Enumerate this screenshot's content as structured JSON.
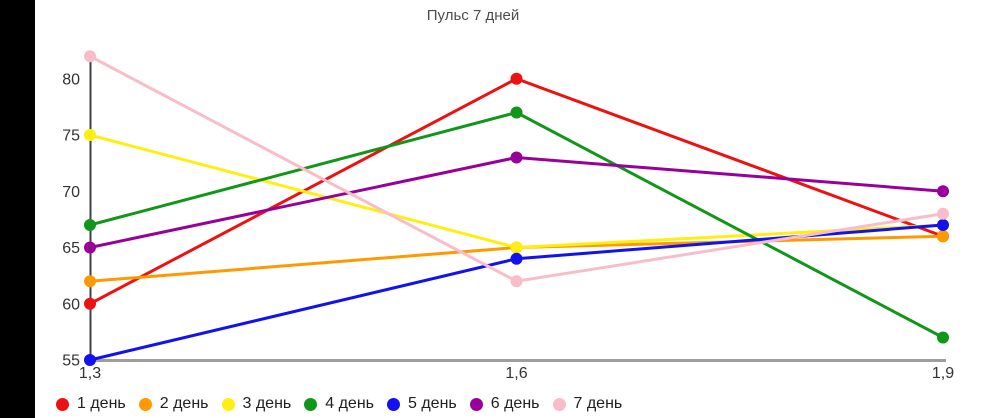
{
  "window": {
    "background": "#ffffff",
    "letterbox_color": "#000000"
  },
  "chart_data": {
    "type": "line",
    "title": "Пульс 7 дней",
    "x": [
      1.3,
      1.6,
      1.9
    ],
    "x_tick_labels": [
      "1,3",
      "1,6",
      "1,9"
    ],
    "y_ticks": [
      55,
      60,
      65,
      70,
      75,
      80
    ],
    "ylim": [
      55,
      82
    ],
    "grid": false,
    "legend_position": "bottom",
    "xlabel": "",
    "ylabel": "",
    "series": [
      {
        "name": "1 день",
        "color": "#ee1111",
        "values": [
          60,
          80,
          66
        ]
      },
      {
        "name": "2 день",
        "color": "#ff9900",
        "values": [
          62,
          65,
          66
        ]
      },
      {
        "name": "3 день",
        "color": "#ffee11",
        "values": [
          75,
          65,
          67
        ]
      },
      {
        "name": "4 день",
        "color": "#109618",
        "values": [
          67,
          77,
          57
        ]
      },
      {
        "name": "5 день",
        "color": "#1212ee",
        "values": [
          55,
          64,
          67
        ]
      },
      {
        "name": "6 день",
        "color": "#990099",
        "values": [
          65,
          73,
          70
        ]
      },
      {
        "name": "7 день",
        "color": "#f8bdc8",
        "values": [
          82,
          62,
          68
        ]
      }
    ],
    "colors": {
      "title_text": "#4d4d4d",
      "tick_text": "#333333",
      "y_axis_line": "#424242",
      "x_axis_line": "#9e9e9e",
      "legend_text": "#212121"
    }
  }
}
